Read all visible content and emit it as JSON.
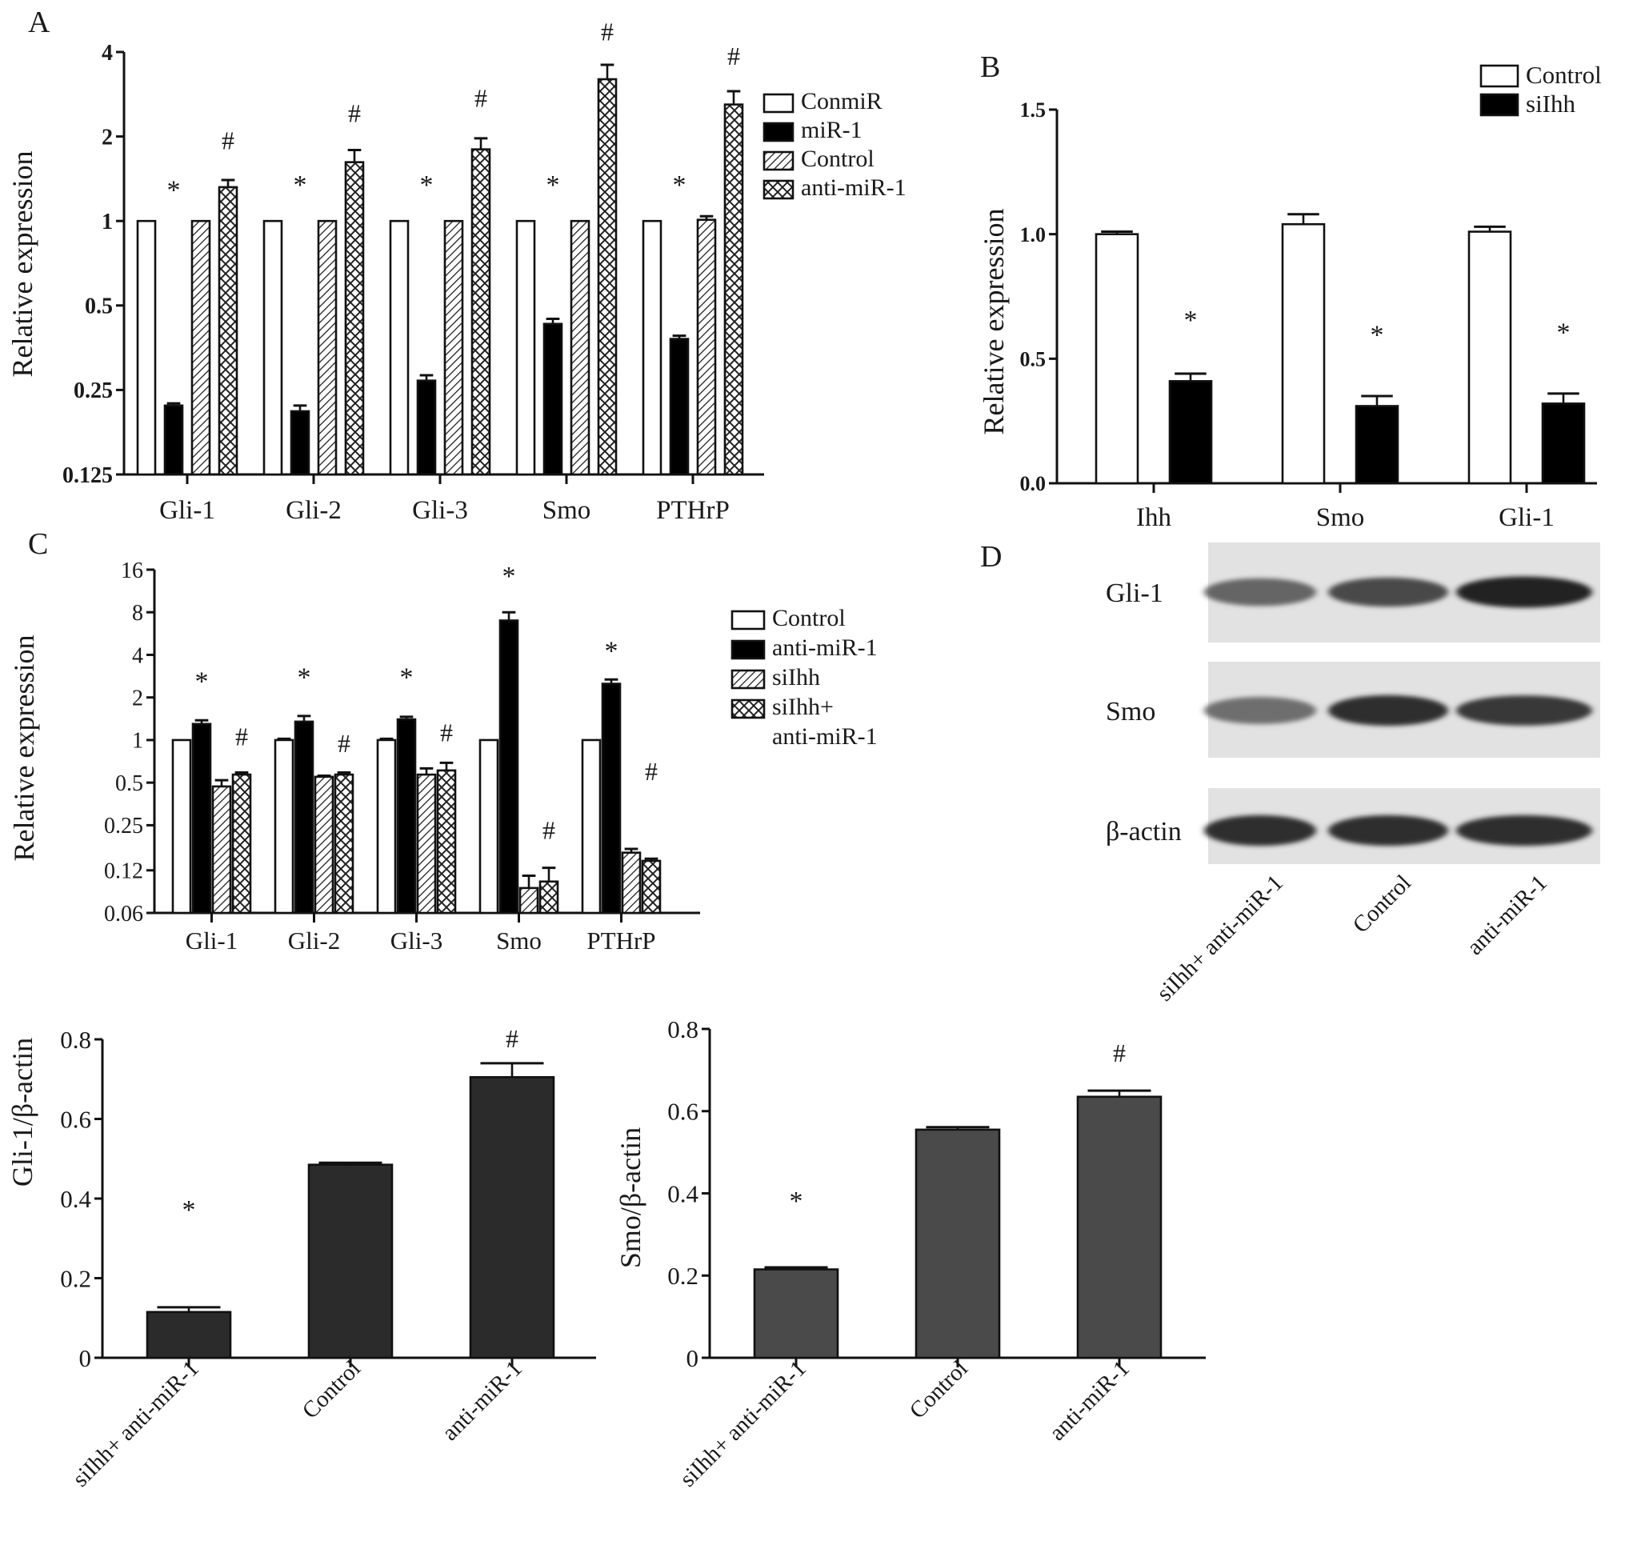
{
  "chart_data": [
    {
      "id": "A",
      "panel_label": "A",
      "type": "bar",
      "yscale": "log2",
      "ylabel": "Relative expression",
      "ylim": [
        0.125,
        4
      ],
      "yticks": [
        0.125,
        0.25,
        0.5,
        1,
        2,
        4
      ],
      "ytick_labels": [
        "0.125",
        "0.25",
        "0.5",
        "1",
        "2",
        "4"
      ],
      "categories": [
        "Gli-1",
        "Gli-2",
        "Gli-3",
        "Smo",
        "PTHrP"
      ],
      "series": [
        {
          "name": "ConmiR",
          "pattern": "white",
          "values": [
            1,
            1,
            1,
            1,
            1
          ],
          "errors": [
            0,
            0,
            0,
            0,
            0
          ]
        },
        {
          "name": "miR-1",
          "pattern": "black",
          "values": [
            0.22,
            0.21,
            0.27,
            0.43,
            0.38
          ],
          "errors": [
            0.004,
            0.01,
            0.012,
            0.018,
            0.01
          ]
        },
        {
          "name": "Control",
          "pattern": "hatch",
          "values": [
            1,
            1,
            1,
            1,
            1.01
          ],
          "errors": [
            0,
            0,
            0,
            0,
            0.03
          ]
        },
        {
          "name": "anti-miR-1",
          "pattern": "cross",
          "values": [
            1.32,
            1.62,
            1.8,
            3.2,
            2.6
          ],
          "errors": [
            0.08,
            0.17,
            0.17,
            0.4,
            0.3
          ]
        }
      ],
      "annotations": [
        {
          "text": "*",
          "category": "Gli-1",
          "value": 1.2
        },
        {
          "text": "*",
          "category": "Gli-2",
          "value": 1.25
        },
        {
          "text": "*",
          "category": "Gli-3",
          "value": 1.25
        },
        {
          "text": "*",
          "category": "Smo",
          "value": 1.25
        },
        {
          "text": "*",
          "category": "PTHrP",
          "value": 1.25
        },
        {
          "text": "#",
          "category": "Gli-1",
          "value": 1.8
        },
        {
          "text": "#",
          "category": "Gli-2",
          "value": 2.25
        },
        {
          "text": "#",
          "category": "Gli-3",
          "value": 2.55
        },
        {
          "text": "#",
          "category": "Smo",
          "value": 4.4
        },
        {
          "text": "#",
          "category": "PTHrP",
          "value": 3.6
        }
      ],
      "legend_position": "right"
    },
    {
      "id": "B",
      "panel_label": "B",
      "type": "bar",
      "yscale": "linear",
      "ylabel": "Relative expression",
      "ylim": [
        0,
        1.5
      ],
      "yticks": [
        0,
        0.5,
        1.0,
        1.5
      ],
      "ytick_labels": [
        "0.0",
        "0.5",
        "1.0",
        "1.5"
      ],
      "categories": [
        "Ihh",
        "Smo",
        "Gli-1"
      ],
      "series": [
        {
          "name": "Control",
          "pattern": "white",
          "values": [
            1.0,
            1.04,
            1.01
          ],
          "errors": [
            0.01,
            0.04,
            0.02
          ]
        },
        {
          "name": "siIhh",
          "pattern": "black",
          "values": [
            0.41,
            0.31,
            0.32
          ],
          "errors": [
            0.03,
            0.04,
            0.04
          ]
        }
      ],
      "annotations": [
        {
          "text": "*",
          "category": "Ihh",
          "value": 0.62
        },
        {
          "text": "*",
          "category": "Smo",
          "value": 0.56
        },
        {
          "text": "*",
          "category": "Gli-1",
          "value": 0.57
        }
      ],
      "legend_position": "top-right"
    },
    {
      "id": "C",
      "panel_label": "C",
      "type": "bar",
      "yscale": "log2",
      "ylabel": "Relative expression",
      "ylim": [
        0.06,
        16
      ],
      "yticks": [
        0.06,
        0.12,
        0.25,
        0.5,
        1,
        2,
        4,
        8,
        16
      ],
      "ytick_labels": [
        "0.06",
        "0.12",
        "0.25",
        "0.5",
        "1",
        "2",
        "4",
        "8",
        "16"
      ],
      "categories": [
        "Gli-1",
        "Gli-2",
        "Gli-3",
        "Smo",
        "PTHrP"
      ],
      "series": [
        {
          "name": "Control",
          "pattern": "white",
          "values": [
            1,
            1,
            1,
            1,
            1
          ],
          "errors": [
            0,
            0.02,
            0.02,
            0,
            0
          ]
        },
        {
          "name": "anti-miR-1",
          "pattern": "black",
          "values": [
            1.3,
            1.35,
            1.4,
            7.0,
            2.5
          ],
          "errors": [
            0.08,
            0.13,
            0.06,
            1.0,
            0.18
          ]
        },
        {
          "name": "siIhh",
          "pattern": "hatch",
          "values": [
            0.47,
            0.55,
            0.57,
            0.09,
            0.16
          ],
          "errors": [
            0.05,
            0.01,
            0.06,
            0.02,
            0.01
          ]
        },
        {
          "name": "siIhh+\nanti-miR-1",
          "pattern": "cross",
          "values": [
            0.57,
            0.57,
            0.61,
            0.1,
            0.14
          ],
          "errors": [
            0.02,
            0.02,
            0.08,
            0.025,
            0.005
          ]
        }
      ],
      "annotations": [
        {
          "text": "*",
          "category": "Gli-1",
          "value": 2.25
        },
        {
          "text": "*",
          "category": "Gli-2",
          "value": 2.4
        },
        {
          "text": "*",
          "category": "Gli-3",
          "value": 2.4
        },
        {
          "text": "*",
          "category": "Smo",
          "value": 12.5
        },
        {
          "text": "*",
          "category": "PTHrP",
          "value": 3.7
        },
        {
          "text": "#",
          "category": "Gli-1",
          "value": 0.92
        },
        {
          "text": "#",
          "category": "Gli-2",
          "value": 0.82
        },
        {
          "text": "#",
          "category": "Gli-3",
          "value": 0.98
        },
        {
          "text": "#",
          "category": "Smo",
          "value": 0.2
        },
        {
          "text": "#",
          "category": "PTHrP",
          "value": 0.52
        }
      ],
      "legend_position": "right"
    },
    {
      "id": "E",
      "panel_label": "",
      "type": "bar",
      "yscale": "linear",
      "ylabel": "Gli-1/β-actin",
      "ylim": [
        0,
        0.8
      ],
      "yticks": [
        0,
        0.2,
        0.4,
        0.6,
        0.8
      ],
      "ytick_labels": [
        "0",
        "0.2",
        "0.4",
        "0.6",
        "0.8"
      ],
      "categories": [
        "siIhh+ anti-miR-1",
        "Control",
        "anti-miR-1"
      ],
      "series": [
        {
          "name": "",
          "color": "#2b2b2b",
          "values": [
            0.115,
            0.485,
            0.705
          ],
          "errors": [
            0.012,
            0.005,
            0.035
          ]
        }
      ],
      "annotations": [
        {
          "text": "*",
          "category": "siIhh+ anti-miR-1",
          "value": 0.35
        },
        {
          "text": "#",
          "category": "anti-miR-1",
          "value": 0.78
        }
      ]
    },
    {
      "id": "F",
      "panel_label": "",
      "type": "bar",
      "yscale": "linear",
      "ylabel": "Smo/β-actin",
      "ylim": [
        0,
        0.8
      ],
      "yticks": [
        0,
        0.2,
        0.4,
        0.6,
        0.8
      ],
      "ytick_labels": [
        "0",
        "0.2",
        "0.4",
        "0.6",
        "0.8"
      ],
      "categories": [
        "siIhh+ anti-miR-1",
        "Control",
        "anti-miR-1"
      ],
      "series": [
        {
          "name": "",
          "color": "#4a4a4a",
          "values": [
            0.215,
            0.555,
            0.635
          ],
          "errors": [
            0.005,
            0.006,
            0.015
          ]
        }
      ],
      "annotations": [
        {
          "text": "*",
          "category": "siIhh+ anti-miR-1",
          "value": 0.36
        },
        {
          "text": "#",
          "category": "anti-miR-1",
          "value": 0.72
        }
      ]
    }
  ],
  "blot": {
    "panel_label": "D",
    "rows": [
      {
        "label": "Gli-1",
        "intensities": [
          0.55,
          0.7,
          0.92
        ]
      },
      {
        "label": "Smo",
        "intensities": [
          0.5,
          0.85,
          0.8
        ]
      },
      {
        "label": "β-actin",
        "intensities": [
          0.85,
          0.85,
          0.85
        ]
      }
    ],
    "lanes": [
      "siIhh+ anti-miR-1",
      "Control",
      "anti-miR-1"
    ]
  }
}
